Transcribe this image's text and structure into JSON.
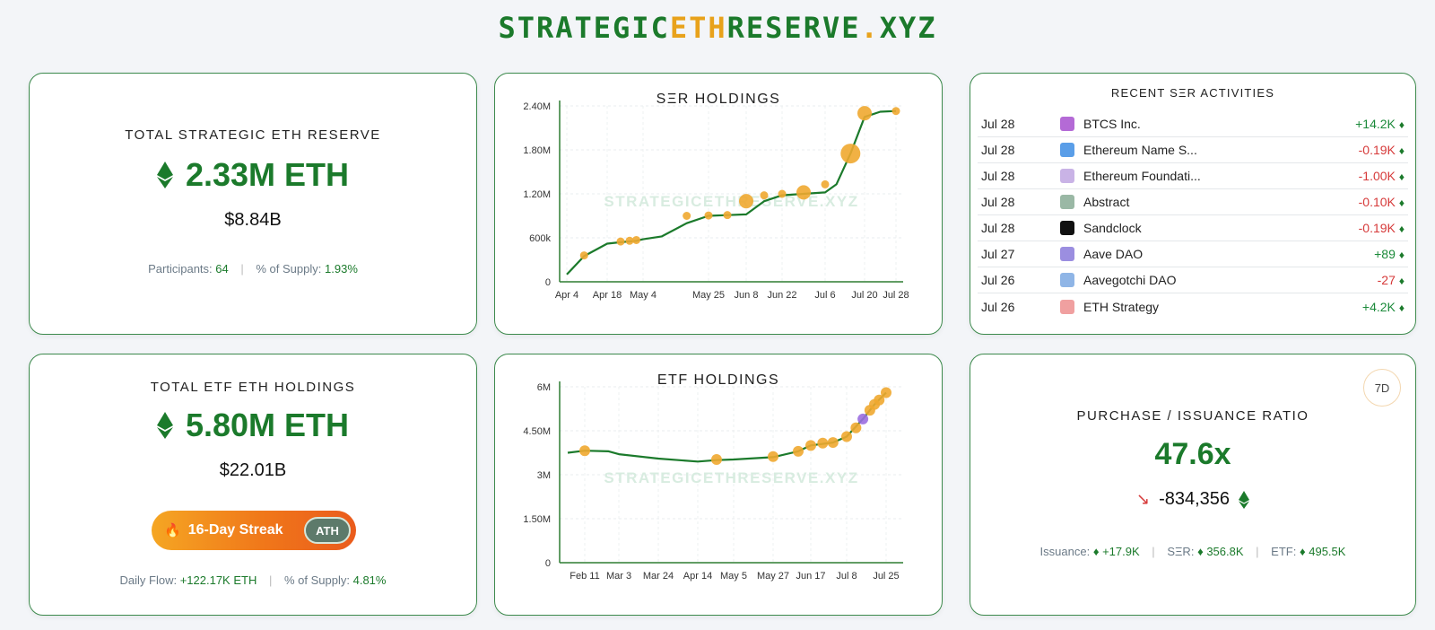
{
  "site": {
    "title_part1": "STRATEGIC",
    "title_accent": "ETH",
    "title_part2": "RESERVE",
    "title_dot": ".",
    "title_tld": "XYZ"
  },
  "total_reserve": {
    "label": "TOTAL STRATEGIC ETH RESERVE",
    "eth_amount": "2.33M ETH",
    "usd": "$8.84B",
    "participants_label": "Participants:",
    "participants": "64",
    "supply_label": "% of Supply:",
    "supply": "1.93%"
  },
  "total_etf": {
    "label": "TOTAL ETF ETH HOLDINGS",
    "eth_amount": "5.80M ETH",
    "usd": "$22.01B",
    "streak_label": "16-Day Streak",
    "streak_badge": "ATH",
    "flow_label": "Daily Flow:",
    "flow": "+122.17K ETH",
    "supply_label": "% of Supply:",
    "supply": "4.81%"
  },
  "ser_chart": {
    "title": "SΞR HOLDINGS",
    "watermark": "STRATEGICETHRESERVE.XYZ"
  },
  "etf_chart": {
    "title": "ETF HOLDINGS",
    "watermark": "STRATEGICETHRESERVE.XYZ"
  },
  "activities": {
    "title": "RECENT SΞR ACTIVITIES",
    "rows": [
      {
        "date": "Jul 28",
        "name": "BTCS Inc.",
        "value": "+14.2K",
        "dir": "pos",
        "icon": "btcs-icon",
        "color": "#b46ad6"
      },
      {
        "date": "Jul 28",
        "name": "Ethereum Name S...",
        "value": "-0.19K",
        "dir": "neg",
        "icon": "ens-icon",
        "color": "#5a9ee8"
      },
      {
        "date": "Jul 28",
        "name": "Ethereum Foundati...",
        "value": "-1.00K",
        "dir": "neg",
        "icon": "ethereum-foundation-icon",
        "color": "#c9b3e6"
      },
      {
        "date": "Jul 28",
        "name": "Abstract",
        "value": "-0.10K",
        "dir": "neg",
        "icon": "abstract-icon",
        "color": "#9ab8a5"
      },
      {
        "date": "Jul 28",
        "name": "Sandclock",
        "value": "-0.19K",
        "dir": "neg",
        "icon": "sandclock-icon",
        "color": "#111111"
      },
      {
        "date": "Jul 27",
        "name": "Aave DAO",
        "value": "+89",
        "dir": "pos",
        "icon": "aave-icon",
        "color": "#9b8ee0"
      },
      {
        "date": "Jul 26",
        "name": "Aavegotchi DAO",
        "value": "-27",
        "dir": "neg",
        "icon": "aavegotchi-icon",
        "color": "#8fb5e6"
      },
      {
        "date": "Jul 26",
        "name": "ETH Strategy",
        "value": "+4.2K",
        "dir": "pos",
        "icon": "eth-strategy-icon",
        "color": "#f0a0a0"
      }
    ]
  },
  "ratio": {
    "badge": "7D",
    "label": "PURCHASE / ISSUANCE RATIO",
    "value": "47.6x",
    "delta": "-834,356",
    "issuance_label": "Issuance:",
    "issuance": "+17.9K",
    "ser_label": "SΞR:",
    "ser": "356.8K",
    "etf_label": "ETF:",
    "etf": "495.5K"
  },
  "colors": {
    "green": "#1b7a2b",
    "orange": "#f0a830",
    "purple": "#9b6ee0",
    "red": "#d63a3a"
  },
  "chart_data": [
    {
      "type": "line",
      "title": "SΞR HOLDINGS",
      "yticks": [
        "0",
        "600k",
        "1.20M",
        "1.80M",
        "2.40M"
      ],
      "xticks": [
        "Apr 4",
        "Apr 18",
        "May 4",
        "May 25",
        "Jun 8",
        "Jun 22",
        "Jul 6",
        "Jul 20",
        "Jul 28"
      ],
      "ylim": [
        0,
        2400000
      ],
      "series": [
        {
          "x": [
            "Apr 4",
            "Apr 10",
            "Apr 18",
            "Apr 24",
            "May 1",
            "May 4",
            "May 10",
            "May 18",
            "May 25",
            "Jun 1",
            "Jun 8",
            "Jun 15",
            "Jun 22",
            "Jun 29",
            "Jul 6",
            "Jul 10",
            "Jul 15",
            "Jul 20",
            "Jul 24",
            "Jul 28"
          ],
          "values": [
            100000,
            350000,
            520000,
            540000,
            560000,
            580000,
            620000,
            800000,
            900000,
            910000,
            920000,
            1100000,
            1180000,
            1200000,
            1220000,
            1330000,
            1750000,
            2250000,
            2320000,
            2330000
          ]
        }
      ],
      "markers": [
        {
          "x": "Apr 10",
          "value": 360000,
          "size": "small"
        },
        {
          "x": "Apr 24",
          "value": 550000,
          "size": "small"
        },
        {
          "x": "Apr 28",
          "value": 560000,
          "size": "small"
        },
        {
          "x": "May 1",
          "value": 570000,
          "size": "small"
        },
        {
          "x": "May 18",
          "value": 900000,
          "size": "small"
        },
        {
          "x": "May 25",
          "value": 905000,
          "size": "small"
        },
        {
          "x": "Jun 1",
          "value": 910000,
          "size": "small"
        },
        {
          "x": "Jun 8",
          "value": 1100000,
          "size": "medium"
        },
        {
          "x": "Jun 15",
          "value": 1180000,
          "size": "small"
        },
        {
          "x": "Jun 22",
          "value": 1200000,
          "size": "small"
        },
        {
          "x": "Jun 29",
          "value": 1220000,
          "size": "medium"
        },
        {
          "x": "Jul 6",
          "value": 1330000,
          "size": "small"
        },
        {
          "x": "Jul 15",
          "value": 1750000,
          "size": "large"
        },
        {
          "x": "Jul 20",
          "value": 2300000,
          "size": "medium"
        },
        {
          "x": "Jul 28",
          "value": 2330000,
          "size": "small"
        }
      ]
    },
    {
      "type": "line",
      "title": "ETF HOLDINGS",
      "yticks": [
        "0",
        "1.50M",
        "3M",
        "4.50M",
        "6M"
      ],
      "xticks": [
        "Feb 11",
        "Mar 3",
        "Mar 24",
        "Apr 14",
        "May 5",
        "May 27",
        "Jun 17",
        "Jul 8",
        "Jul 25"
      ],
      "ylim": [
        0,
        6000000
      ],
      "series": [
        {
          "x": [
            "Feb 1",
            "Feb 11",
            "Feb 25",
            "Mar 3",
            "Mar 24",
            "Apr 14",
            "Apr 25",
            "May 5",
            "May 27",
            "Jun 10",
            "Jun 17",
            "Jun 30",
            "Jul 8",
            "Jul 15",
            "Jul 20",
            "Jul 25"
          ],
          "values": [
            3750000,
            3820000,
            3800000,
            3700000,
            3550000,
            3450000,
            3500000,
            3520000,
            3600000,
            3800000,
            4000000,
            4100000,
            4300000,
            4900000,
            5400000,
            5800000
          ]
        }
      ],
      "markers": [
        {
          "x": "Feb 11",
          "value": 3820000,
          "color": "orange"
        },
        {
          "x": "Apr 25",
          "value": 3520000,
          "color": "orange"
        },
        {
          "x": "May 27",
          "value": 3620000,
          "color": "orange"
        },
        {
          "x": "Jun 10",
          "value": 3800000,
          "color": "orange"
        },
        {
          "x": "Jun 17",
          "value": 4000000,
          "color": "orange"
        },
        {
          "x": "Jun 24",
          "value": 4080000,
          "color": "orange"
        },
        {
          "x": "Jun 30",
          "value": 4100000,
          "color": "orange"
        },
        {
          "x": "Jul 8",
          "value": 4300000,
          "color": "orange"
        },
        {
          "x": "Jul 12",
          "value": 4600000,
          "color": "orange"
        },
        {
          "x": "Jul 15",
          "value": 4900000,
          "color": "purple"
        },
        {
          "x": "Jul 18",
          "value": 5200000,
          "color": "orange"
        },
        {
          "x": "Jul 20",
          "value": 5400000,
          "color": "orange"
        },
        {
          "x": "Jul 22",
          "value": 5550000,
          "color": "orange"
        },
        {
          "x": "Jul 25",
          "value": 5800000,
          "color": "orange"
        }
      ]
    }
  ]
}
